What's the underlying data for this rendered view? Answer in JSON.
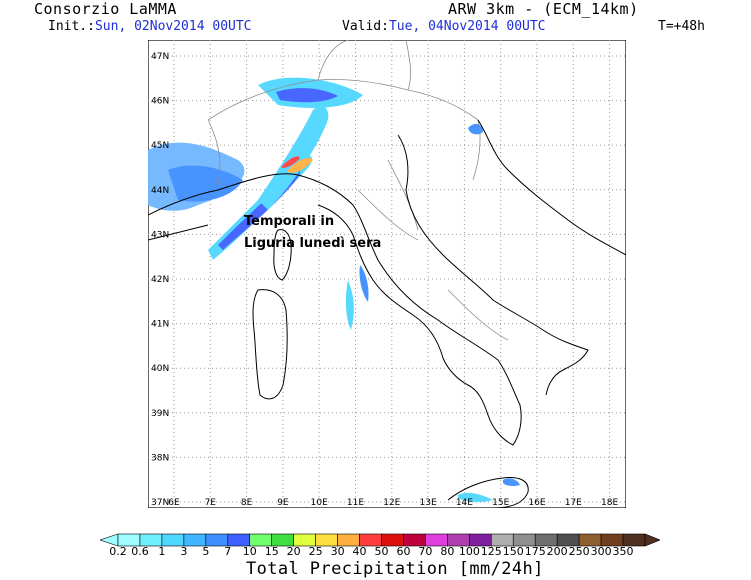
{
  "header": {
    "organization": "Consorzio LaMMA",
    "init_prefix": "Init.:",
    "init_time": "Sun, 02Nov2014 00UTC",
    "valid_prefix": "Valid:",
    "valid_time": "Tue, 04Nov2014 00UTC",
    "model": "ARW 3km - (ECM_14km)",
    "forecast_step": "T=+48h"
  },
  "annotation": "Temporali in Liguria lunedì sera",
  "axes": {
    "lat_ticks": [
      "47N",
      "46N",
      "45N",
      "44N",
      "43N",
      "42N",
      "41N",
      "40N",
      "39N",
      "38N",
      "37N"
    ],
    "lon_ticks": [
      "6E",
      "7E",
      "8E",
      "9E",
      "10E",
      "11E",
      "12E",
      "13E",
      "14E",
      "15E",
      "16E",
      "17E",
      "18E"
    ]
  },
  "colorbar": {
    "title": "Total Precipitation [mm/24h]",
    "labels": [
      "0.2",
      "0.6",
      "1",
      "3",
      "5",
      "7",
      "10",
      "15",
      "20",
      "25",
      "30",
      "40",
      "50",
      "60",
      "70",
      "80",
      "100",
      "125",
      "150",
      "175",
      "200",
      "250",
      "300",
      "350"
    ],
    "colors": [
      "#9ffcff",
      "#6ff0ff",
      "#4fd6ff",
      "#3fb6ff",
      "#3f8fff",
      "#3f5fff",
      "#6fff6f",
      "#3fdf3f",
      "#dfff3f",
      "#ffdf3f",
      "#ffaf3f",
      "#ff3f3f",
      "#df0f0f",
      "#bf003f",
      "#df3fdf",
      "#af3faf",
      "#7f1f9f",
      "#afafaf",
      "#8f8f8f",
      "#6f6f6f",
      "#4f4f4f",
      "#8f5f2f",
      "#6f3f1f",
      "#4f2f1f"
    ]
  },
  "colors": {
    "coast": "#000000",
    "borders": "#8c8c8c",
    "grid": "#9a9a9a",
    "text_blue": "#1f2fd6"
  }
}
